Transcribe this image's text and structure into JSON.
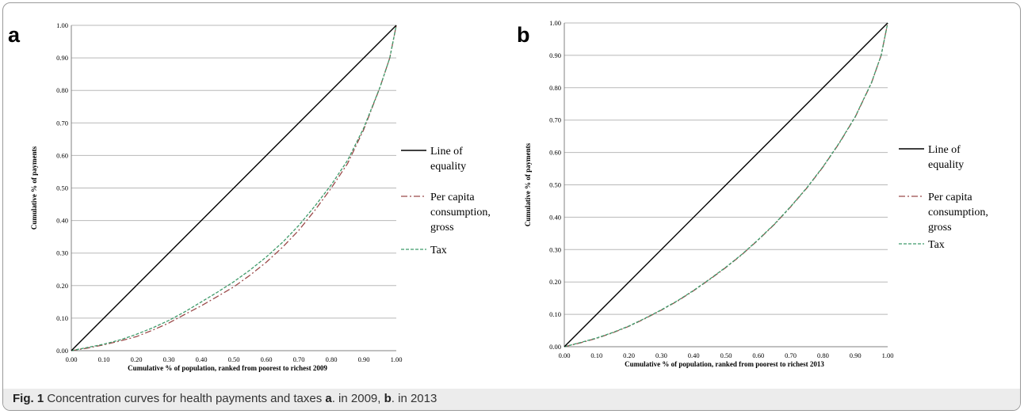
{
  "caption": {
    "fig_label": "Fig. 1",
    "text_1": " Concentration curves for health payments and taxes ",
    "label_a": "a",
    "text_2": ". in 2009, ",
    "label_b": "b",
    "text_3": ". in 2013"
  },
  "colors": {
    "equality": "#000000",
    "consumption": "#9b4a4a",
    "tax": "#3f9a6a",
    "grid": "#b8b8b8",
    "caption_bg": "#ececec"
  },
  "chart_data": [
    {
      "panel": "a",
      "type": "line",
      "xlabel": "Cumulative % of population, ranked from poorest to richest  2009",
      "ylabel": "Cumulative % of payments",
      "xlim": [
        0,
        1
      ],
      "ylim": [
        0,
        1
      ],
      "x_ticks": [
        "0.00",
        "0.10",
        "0.20",
        "0.30",
        "0.40",
        "0.50",
        "0.60",
        "0.70",
        "0.80",
        "0.90",
        "1.00"
      ],
      "y_ticks": [
        "0.00",
        "0.10",
        "0.20",
        "0.30",
        "0.40",
        "0.50",
        "0.60",
        "0.70",
        "0.80",
        "0.90",
        "1.00"
      ],
      "grid": "horizontal",
      "legend_position": "right",
      "series": [
        {
          "name": "Line of equality",
          "style": "solid",
          "color": "#000000",
          "x": [
            0,
            1
          ],
          "y": [
            0,
            1
          ]
        },
        {
          "name": "Per capita consumption, gross",
          "style": "dash-dot",
          "color": "#9b4a4a",
          "x": [
            0,
            0.05,
            0.1,
            0.15,
            0.2,
            0.25,
            0.3,
            0.35,
            0.4,
            0.45,
            0.5,
            0.55,
            0.6,
            0.65,
            0.7,
            0.75,
            0.8,
            0.85,
            0.9,
            0.95,
            0.98,
            1.0
          ],
          "y": [
            0,
            0.008,
            0.018,
            0.03,
            0.043,
            0.063,
            0.085,
            0.112,
            0.138,
            0.167,
            0.196,
            0.232,
            0.272,
            0.318,
            0.37,
            0.432,
            0.5,
            0.575,
            0.68,
            0.81,
            0.9,
            1.0
          ]
        },
        {
          "name": "Tax",
          "style": "dashed",
          "color": "#3f9a6a",
          "x": [
            0,
            0.05,
            0.1,
            0.15,
            0.2,
            0.25,
            0.3,
            0.35,
            0.4,
            0.45,
            0.5,
            0.55,
            0.6,
            0.65,
            0.7,
            0.75,
            0.8,
            0.85,
            0.9,
            0.95,
            0.98,
            1.0
          ],
          "y": [
            0,
            0.01,
            0.02,
            0.033,
            0.05,
            0.07,
            0.093,
            0.12,
            0.15,
            0.18,
            0.212,
            0.248,
            0.288,
            0.333,
            0.385,
            0.445,
            0.51,
            0.585,
            0.685,
            0.81,
            0.9,
            1.0
          ]
        }
      ]
    },
    {
      "panel": "b",
      "type": "line",
      "xlabel": "Cumulative % of population, ranked from poorest to richest  2013",
      "ylabel": "Cumulative % of payments",
      "xlim": [
        0,
        1
      ],
      "ylim": [
        0,
        1
      ],
      "x_ticks": [
        "0.00",
        "0.10",
        "0.20",
        "0.30",
        "0.40",
        "0.50",
        "0.60",
        "0.70",
        "0.80",
        "0.90",
        "1.00"
      ],
      "y_ticks": [
        "0.00",
        "0.10",
        "0.20",
        "0.30",
        "0.40",
        "0.50",
        "0.60",
        "0.70",
        "0.80",
        "0.90",
        "1.00"
      ],
      "grid": "horizontal",
      "legend_position": "right",
      "series": [
        {
          "name": "Line of equality",
          "style": "solid",
          "color": "#000000",
          "x": [
            0,
            1
          ],
          "y": [
            0,
            1
          ]
        },
        {
          "name": "Per capita consumption, gross",
          "style": "dash-dot",
          "color": "#9b4a4a",
          "x": [
            0,
            0.05,
            0.1,
            0.15,
            0.2,
            0.25,
            0.3,
            0.35,
            0.4,
            0.45,
            0.5,
            0.55,
            0.6,
            0.65,
            0.7,
            0.75,
            0.8,
            0.85,
            0.9,
            0.95,
            0.98,
            1.0
          ],
          "y": [
            0,
            0.012,
            0.026,
            0.043,
            0.063,
            0.087,
            0.113,
            0.141,
            0.173,
            0.208,
            0.245,
            0.285,
            0.33,
            0.378,
            0.432,
            0.49,
            0.555,
            0.628,
            0.71,
            0.815,
            0.9,
            1.0
          ]
        },
        {
          "name": "Tax",
          "style": "dashed",
          "color": "#3f9a6a",
          "x": [
            0,
            0.05,
            0.1,
            0.15,
            0.2,
            0.25,
            0.3,
            0.35,
            0.4,
            0.45,
            0.5,
            0.55,
            0.6,
            0.65,
            0.7,
            0.75,
            0.8,
            0.85,
            0.9,
            0.95,
            0.98,
            1.0
          ],
          "y": [
            0,
            0.013,
            0.027,
            0.044,
            0.064,
            0.088,
            0.114,
            0.142,
            0.174,
            0.209,
            0.246,
            0.286,
            0.331,
            0.379,
            0.433,
            0.491,
            0.556,
            0.629,
            0.711,
            0.816,
            0.9,
            1.0
          ]
        }
      ]
    }
  ],
  "legend": {
    "equality_lines": [
      "Line of",
      "equality"
    ],
    "consumption_lines": [
      "Per capita",
      "consumption,",
      "gross"
    ],
    "tax_lines": [
      "Tax"
    ]
  }
}
